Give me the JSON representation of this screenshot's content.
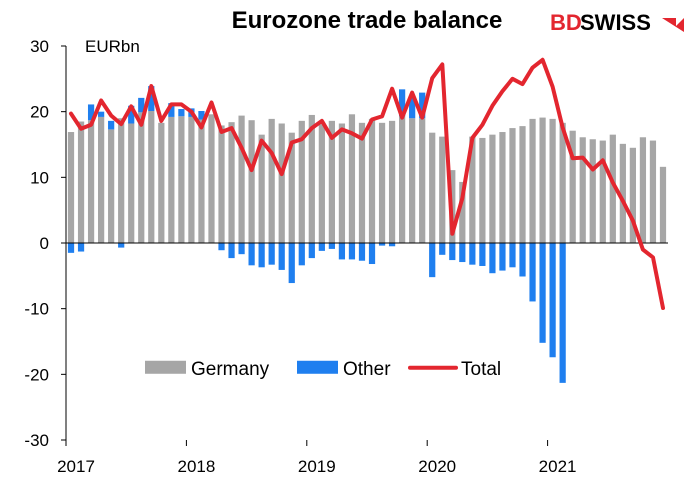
{
  "colors": {
    "germany": "#a6a6a6",
    "other": "#1f7fef",
    "total": "#e3262f",
    "brand_red": "#e3262f"
  },
  "logo": {
    "part1": "BD",
    "part2": "SWISS"
  },
  "chart_data": {
    "type": "bar",
    "title": "Eurozone trade balance",
    "unit_label": "EURbn",
    "ylim": [
      -30,
      30
    ],
    "yticks": [
      30,
      20,
      10,
      0,
      -10,
      -20,
      -30
    ],
    "x_year_labels": [
      "2017",
      "2018",
      "2019",
      "2020",
      "2021"
    ],
    "legend": {
      "placement": "lower-center",
      "entries": [
        "Germany",
        "Other",
        "Total"
      ]
    },
    "grid": false,
    "categories": [
      "2017-01",
      "2017-02",
      "2017-03",
      "2017-04",
      "2017-05",
      "2017-06",
      "2017-07",
      "2017-08",
      "2017-09",
      "2017-10",
      "2017-11",
      "2017-12",
      "2018-01",
      "2018-02",
      "2018-03",
      "2018-04",
      "2018-05",
      "2018-06",
      "2018-07",
      "2018-08",
      "2018-09",
      "2018-10",
      "2018-11",
      "2018-12",
      "2019-01",
      "2019-02",
      "2019-03",
      "2019-04",
      "2019-05",
      "2019-06",
      "2019-07",
      "2019-08",
      "2019-09",
      "2019-10",
      "2019-11",
      "2019-12",
      "2020-01",
      "2020-02",
      "2020-03",
      "2020-04",
      "2020-05",
      "2020-06",
      "2020-07",
      "2020-08",
      "2020-09",
      "2020-10",
      "2020-11",
      "2020-12",
      "2021-01",
      "2021-02",
      "2021-03",
      "2021-04",
      "2021-05",
      "2021-06",
      "2021-07",
      "2021-08",
      "2021-09",
      "2021-10",
      "2021-11",
      "2021-12"
    ],
    "series": [
      {
        "name": "Germany",
        "type": "stacked-bar",
        "values": [
          16.9,
          18.5,
          18.7,
          19.2,
          17.3,
          19.0,
          18.2,
          19.9,
          20.1,
          18.3,
          19.2,
          19.3,
          19.2,
          18.8,
          19.6,
          17.9,
          18.4,
          19.4,
          18.7,
          16.5,
          18.9,
          18.2,
          16.8,
          18.6,
          19.5,
          18.1,
          18.6,
          18.2,
          19.6,
          18.3,
          18.9,
          18.3,
          18.6,
          19.3,
          19.0,
          19.0,
          16.8,
          16.2,
          11.1,
          9.3,
          16.2,
          16.0,
          16.5,
          16.9,
          17.5,
          17.8,
          18.9,
          19.1,
          18.9,
          18.3,
          17.1,
          16.1,
          15.8,
          15.6,
          16.5,
          15.1,
          14.5,
          16.1,
          15.6,
          11.6
        ]
      },
      {
        "name": "Other",
        "type": "stacked-bar",
        "values": [
          -1.5,
          -1.3,
          2.4,
          0.8,
          1.3,
          -0.7,
          2.7,
          2.2,
          3.8,
          0.0,
          2.1,
          1.1,
          1.3,
          1.3,
          0.0,
          -1.1,
          -2.3,
          -1.7,
          -3.4,
          -3.7,
          -3.3,
          -4.1,
          -6.1,
          -3.4,
          -2.3,
          -1.2,
          -0.9,
          -2.5,
          -2.5,
          -2.7,
          -3.2,
          -0.4,
          -0.5,
          4.1,
          3.3,
          3.9,
          -5.2,
          -1.8,
          -2.6,
          -2.9,
          -3.3,
          -3.5,
          -4.6,
          -4.2,
          -3.7,
          -5.1,
          -8.9,
          -15.2,
          -17.4,
          -21.3,
          0,
          0,
          0,
          0,
          0,
          0,
          0,
          0,
          0,
          0
        ]
      },
      {
        "name": "Total",
        "type": "line",
        "values": [
          19.7,
          17.4,
          18.0,
          21.7,
          19.4,
          18.1,
          20.8,
          18.0,
          23.9,
          18.6,
          21.1,
          21.1,
          20.0,
          17.6,
          21.4,
          16.9,
          17.5,
          14.5,
          11.1,
          15.6,
          13.7,
          10.5,
          15.3,
          15.8,
          17.5,
          18.6,
          16.0,
          17.3,
          16.7,
          15.9,
          18.8,
          19.3,
          23.5,
          19.1,
          22.9,
          19.1,
          25.1,
          27.2,
          1.4,
          6.8,
          16.0,
          18.0,
          20.9,
          23.1,
          25.0,
          24.2,
          26.7,
          27.9,
          23.8,
          17.6,
          12.9,
          13.0,
          11.2,
          12.6,
          9.2,
          6.4,
          3.4,
          -1.0,
          -2.2,
          -9.9
        ]
      }
    ]
  }
}
